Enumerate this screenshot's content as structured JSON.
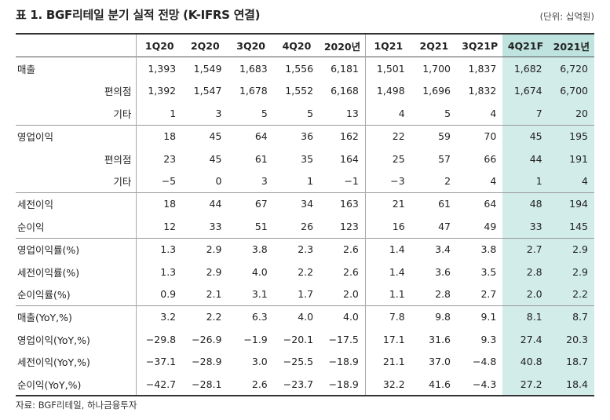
{
  "title": "표 1. BGF리테일 분기 실적 전망 (K-IFRS 연결)",
  "unit": "(단위: 십억원)",
  "columns": [
    "1Q20",
    "2Q20",
    "3Q20",
    "4Q20",
    "2020년",
    "1Q21",
    "2Q21",
    "3Q21P",
    "4Q21F",
    "2021년"
  ],
  "rows": [
    {
      "label": "매출",
      "values": [
        "1,393",
        "1,549",
        "1,683",
        "1,556",
        "6,181",
        "1,501",
        "1,700",
        "1,837",
        "1,682",
        "6,720"
      ]
    },
    {
      "label": "편의점",
      "values": [
        "1,392",
        "1,547",
        "1,678",
        "1,552",
        "6,168",
        "1,498",
        "1,696",
        "1,832",
        "1,674",
        "6,700"
      ]
    },
    {
      "label": "기타",
      "values": [
        "1",
        "3",
        "5",
        "5",
        "13",
        "4",
        "5",
        "4",
        "7",
        "20"
      ]
    },
    {
      "label": "영업이익",
      "values": [
        "18",
        "45",
        "64",
        "36",
        "162",
        "22",
        "59",
        "70",
        "45",
        "195"
      ]
    },
    {
      "label": "편의점",
      "values": [
        "23",
        "45",
        "61",
        "35",
        "164",
        "25",
        "57",
        "66",
        "44",
        "191"
      ]
    },
    {
      "label": "기타",
      "values": [
        "−5",
        "0",
        "3",
        "1",
        "−1",
        "−3",
        "2",
        "4",
        "1",
        "4"
      ]
    },
    {
      "label": "세전이익",
      "values": [
        "18",
        "44",
        "67",
        "34",
        "163",
        "21",
        "61",
        "64",
        "48",
        "194"
      ]
    },
    {
      "label": "순이익",
      "values": [
        "12",
        "33",
        "51",
        "26",
        "123",
        "16",
        "47",
        "49",
        "33",
        "145"
      ]
    },
    {
      "label": "영업이익률(%)",
      "values": [
        "1.3",
        "2.9",
        "3.8",
        "2.3",
        "2.6",
        "1.4",
        "3.4",
        "3.8",
        "2.7",
        "2.9"
      ]
    },
    {
      "label": "세전이익률(%)",
      "values": [
        "1.3",
        "2.9",
        "4.0",
        "2.2",
        "2.6",
        "1.4",
        "3.6",
        "3.5",
        "2.8",
        "2.9"
      ]
    },
    {
      "label": "순이익률(%)",
      "values": [
        "0.9",
        "2.1",
        "3.1",
        "1.7",
        "2.0",
        "1.1",
        "2.8",
        "2.7",
        "2.0",
        "2.2"
      ]
    },
    {
      "label": "매출(YoY,%)",
      "values": [
        "3.2",
        "2.2",
        "6.3",
        "4.0",
        "4.0",
        "7.8",
        "9.8",
        "9.1",
        "8.1",
        "8.7"
      ]
    },
    {
      "label": "영업이익(YoY,%)",
      "values": [
        "−29.8",
        "−26.9",
        "−1.9",
        "−20.1",
        "−17.5",
        "17.1",
        "31.6",
        "9.3",
        "27.4",
        "20.3"
      ]
    },
    {
      "label": "세전이익(YoY,%)",
      "values": [
        "−37.1",
        "−28.9",
        "3.0",
        "−25.5",
        "−18.9",
        "21.1",
        "37.0",
        "−4.8",
        "40.8",
        "18.7"
      ]
    },
    {
      "label": "순이익(YoY,%)",
      "values": [
        "−42.7",
        "−28.1",
        "2.6",
        "−23.7",
        "−18.9",
        "32.2",
        "41.6",
        "−4.3",
        "27.2",
        "18.4"
      ]
    }
  ],
  "source": "자료: BGF리테일, 하나금융투자",
  "colors": {
    "highlight": "#d2ece9",
    "highlight_header": "#bfe3df"
  }
}
